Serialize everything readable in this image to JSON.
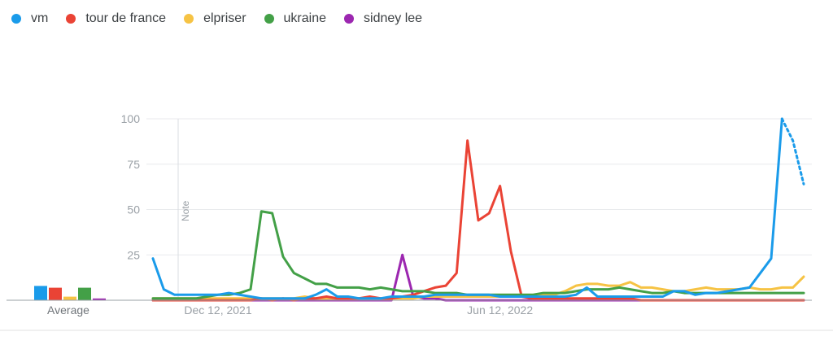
{
  "legend": [
    {
      "label": "vm",
      "color": "#1a9bea"
    },
    {
      "label": "tour de france",
      "color": "#ea4335"
    },
    {
      "label": "elpriser",
      "color": "#f6c344"
    },
    {
      "label": "ukraine",
      "color": "#43a047"
    },
    {
      "label": "sidney lee",
      "color": "#9c27b0"
    }
  ],
  "average_label": "Average",
  "note_label": "Note",
  "chart_data": {
    "type": "line",
    "ylim": [
      0,
      100
    ],
    "yticks": [
      25,
      50,
      75,
      100
    ],
    "xtick_labels": [
      "Dec 12, 2021",
      "Jun 12, 2022"
    ],
    "note_annotation": "Note",
    "grid": true,
    "legend_position": "top-left",
    "x_week_start": "2021-10-31",
    "series": [
      {
        "name": "vm",
        "color": "#1a9bea",
        "partial_last_points": 2,
        "values": [
          23,
          6,
          3,
          3,
          3,
          3,
          3,
          4,
          3,
          2,
          1,
          1,
          1,
          1,
          1,
          3,
          6,
          2,
          2,
          1,
          1,
          1,
          2,
          2,
          2,
          2,
          3,
          3,
          3,
          3,
          3,
          3,
          2,
          2,
          2,
          2,
          2,
          2,
          2,
          3,
          7,
          2,
          2,
          2,
          2,
          2,
          2,
          2,
          5,
          5,
          3,
          4,
          4,
          5,
          6,
          7,
          15,
          23,
          100,
          88,
          64
        ]
      },
      {
        "name": "tour de france",
        "color": "#ea4335",
        "values": [
          0,
          0,
          0,
          0,
          0,
          0,
          0,
          0,
          0,
          0,
          1,
          0,
          1,
          0,
          1,
          1,
          2,
          1,
          1,
          1,
          2,
          1,
          1,
          2,
          3,
          5,
          7,
          8,
          15,
          88,
          44,
          48,
          63,
          27,
          2,
          1,
          1,
          1,
          1,
          1,
          1,
          1,
          1,
          1,
          1,
          0,
          0,
          0,
          0,
          0,
          0,
          0,
          0,
          0,
          0,
          0,
          0,
          0,
          0,
          0,
          0
        ]
      },
      {
        "name": "elpriser",
        "color": "#f6c344",
        "values": [
          1,
          1,
          1,
          1,
          1,
          1,
          1,
          1,
          1,
          1,
          1,
          1,
          1,
          1,
          2,
          1,
          1,
          1,
          1,
          1,
          1,
          1,
          1,
          1,
          1,
          2,
          2,
          2,
          2,
          2,
          2,
          2,
          2,
          2,
          2,
          2,
          3,
          3,
          5,
          8,
          9,
          9,
          8,
          8,
          10,
          7,
          7,
          6,
          5,
          5,
          6,
          7,
          6,
          6,
          6,
          7,
          6,
          6,
          7,
          7,
          13
        ]
      },
      {
        "name": "ukraine",
        "color": "#43a047",
        "values": [
          1,
          1,
          1,
          1,
          1,
          2,
          3,
          3,
          4,
          6,
          49,
          48,
          24,
          15,
          12,
          9,
          9,
          7,
          7,
          7,
          6,
          7,
          6,
          5,
          5,
          5,
          4,
          4,
          4,
          3,
          3,
          3,
          3,
          3,
          3,
          3,
          4,
          4,
          4,
          5,
          6,
          6,
          6,
          7,
          6,
          5,
          4,
          4,
          5,
          4,
          4,
          4,
          4,
          4,
          4,
          4,
          4,
          4,
          4,
          4,
          4
        ]
      },
      {
        "name": "sidney lee",
        "color": "#9c27b0",
        "values": [
          0,
          0,
          0,
          0,
          0,
          0,
          0,
          0,
          0,
          0,
          0,
          0,
          0,
          0,
          0,
          0,
          0,
          0,
          0,
          0,
          0,
          0,
          0,
          25,
          2,
          1,
          1,
          0,
          0,
          0,
          0,
          0,
          0,
          0,
          0,
          0,
          0,
          0,
          0,
          0,
          0,
          0,
          0,
          0,
          0,
          0,
          0,
          0,
          0,
          0,
          0,
          0,
          0,
          0,
          0,
          0,
          0,
          0,
          0,
          0,
          0
        ]
      }
    ],
    "averages": [
      8,
      7,
      2,
      7,
      1
    ]
  }
}
